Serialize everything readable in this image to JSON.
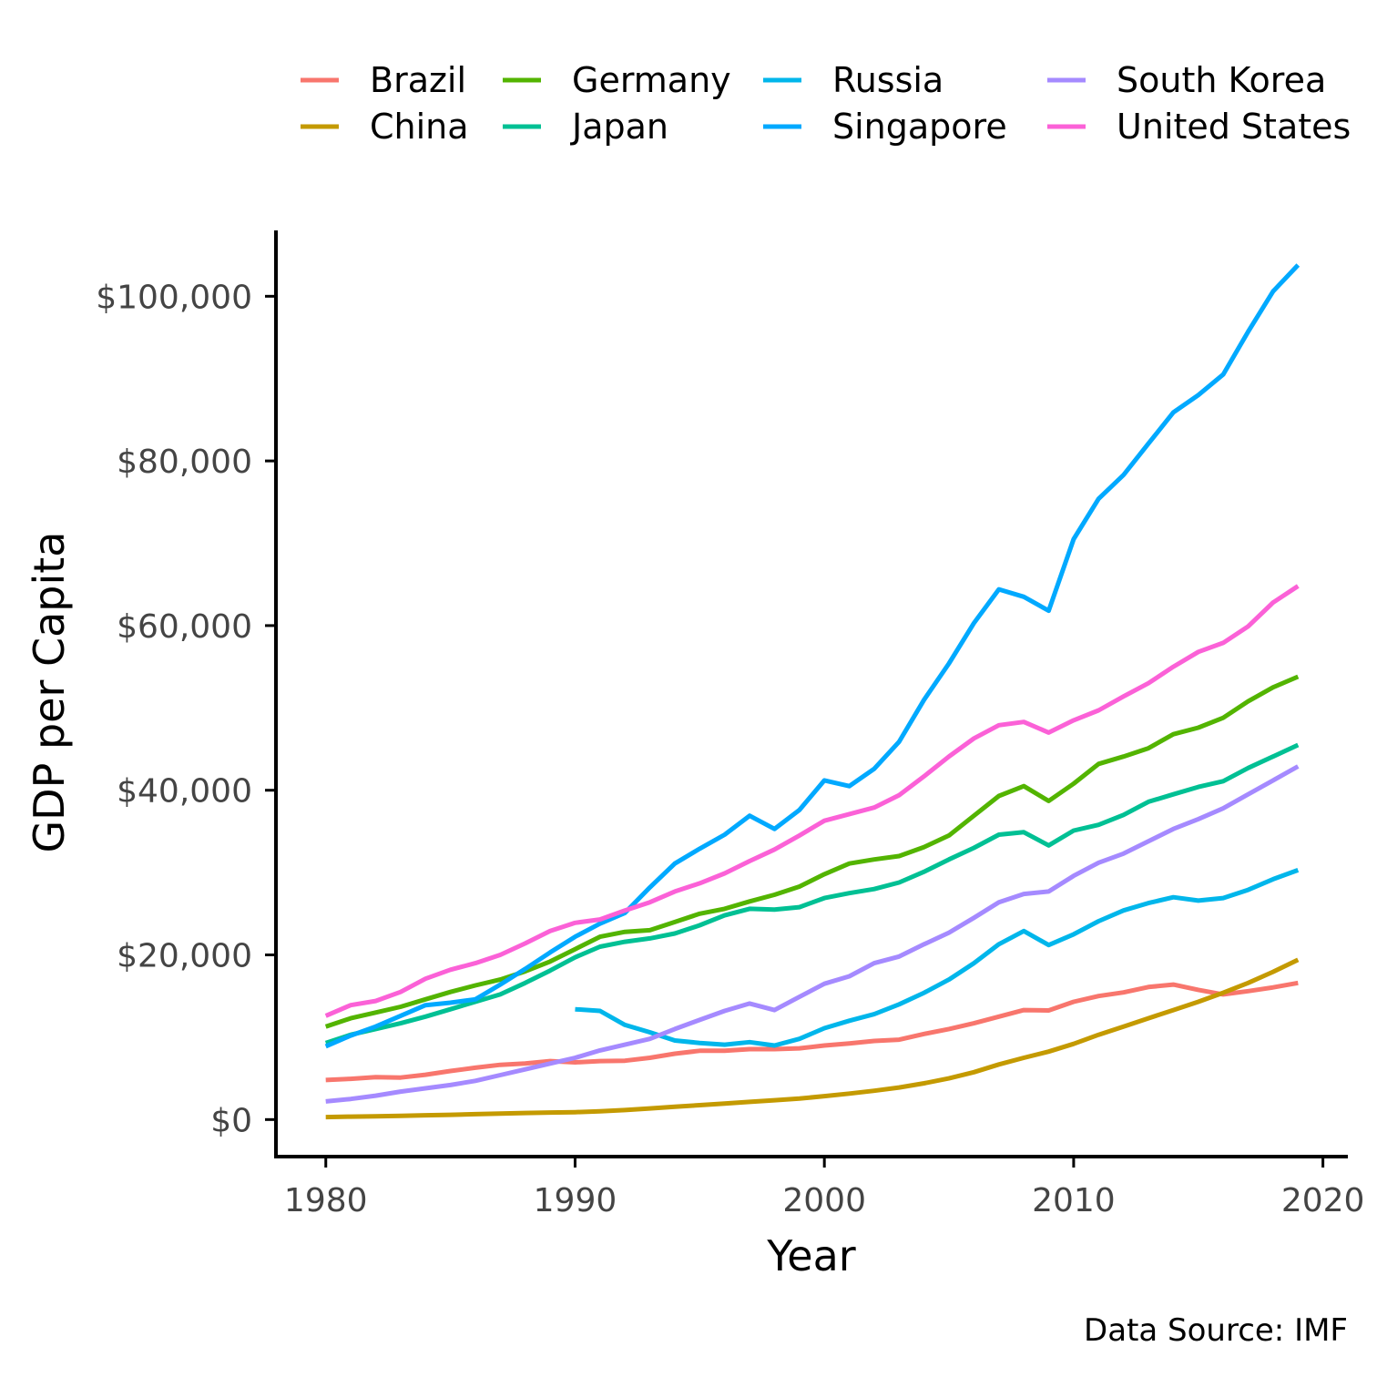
{
  "chart_data": {
    "type": "line",
    "title": "",
    "xlabel": "Year",
    "ylabel": "GDP per Capita",
    "caption": "Data Source: IMF",
    "xlim": [
      1978,
      2021
    ],
    "ylim": [
      -4500,
      108000
    ],
    "x_ticks": [
      1980,
      1990,
      2000,
      2010,
      2020
    ],
    "y_ticks": [
      {
        "value": 0,
        "label": "$0"
      },
      {
        "value": 20000,
        "label": "$20,000"
      },
      {
        "value": 40000,
        "label": "$40,000"
      },
      {
        "value": 60000,
        "label": "$60,000"
      },
      {
        "value": 80000,
        "label": "$80,000"
      },
      {
        "value": 100000,
        "label": "$100,000"
      }
    ],
    "grid": false,
    "legend_position": "top",
    "series": [
      {
        "name": "Brazil",
        "color": "#F8766D",
        "start_year": 1980,
        "values": [
          4800,
          4950,
          5150,
          5100,
          5450,
          5900,
          6300,
          6650,
          6800,
          7100,
          6950,
          7100,
          7150,
          7500,
          8000,
          8350,
          8350,
          8550,
          8550,
          8650,
          9000,
          9250,
          9550,
          9700,
          10400,
          11000,
          11700,
          12500,
          13300,
          13250,
          14300,
          15000,
          15450,
          16100,
          16400,
          15750,
          15200,
          15600,
          16050,
          16600
        ]
      },
      {
        "name": "China",
        "color": "#C49A00",
        "start_year": 1980,
        "values": [
          300,
          360,
          400,
          450,
          520,
          580,
          650,
          720,
          800,
          850,
          900,
          1000,
          1150,
          1350,
          1550,
          1750,
          1950,
          2150,
          2350,
          2550,
          2850,
          3150,
          3500,
          3900,
          4400,
          5000,
          5750,
          6700,
          7500,
          8250,
          9200,
          10300,
          11300,
          12300,
          13300,
          14300,
          15400,
          16600,
          17950,
          19400
        ]
      },
      {
        "name": "Germany",
        "color": "#53B400",
        "start_year": 1980,
        "values": [
          11300,
          12300,
          13000,
          13700,
          14600,
          15500,
          16300,
          17000,
          18000,
          19200,
          20700,
          22200,
          22800,
          23000,
          24000,
          25000,
          25600,
          26500,
          27300,
          28300,
          29800,
          31100,
          31600,
          32000,
          33100,
          34500,
          36900,
          39300,
          40500,
          38700,
          40800,
          43200,
          44100,
          45100,
          46800,
          47600,
          48800,
          50800,
          52500,
          53800
        ]
      },
      {
        "name": "Japan",
        "color": "#00C094",
        "start_year": 1980,
        "values": [
          9300,
          10300,
          11000,
          11700,
          12500,
          13400,
          14300,
          15200,
          16600,
          18100,
          19700,
          21000,
          21600,
          22000,
          22600,
          23600,
          24800,
          25600,
          25500,
          25800,
          26900,
          27500,
          28000,
          28800,
          30100,
          31600,
          33000,
          34600,
          34900,
          33300,
          35100,
          35800,
          37000,
          38600,
          39500,
          40400,
          41100,
          42700,
          44100,
          45500
        ]
      },
      {
        "name": "Russia",
        "color": "#00B6EB",
        "start_year": 1990,
        "values": [
          13400,
          13200,
          11500,
          10600,
          9600,
          9300,
          9100,
          9400,
          9000,
          9800,
          11100,
          12000,
          12800,
          14000,
          15400,
          17000,
          19000,
          21300,
          22900,
          21200,
          22500,
          24100,
          25400,
          26300,
          27000,
          26600,
          26900,
          27900,
          29200,
          30300
        ]
      },
      {
        "name": "Singapore",
        "color": "#00A9FF",
        "start_year": 1980,
        "values": [
          8900,
          10200,
          11300,
          12600,
          13900,
          14200,
          14600,
          16400,
          18300,
          20300,
          22200,
          23800,
          25100,
          28200,
          31100,
          32900,
          34600,
          36900,
          35300,
          37600,
          41200,
          40500,
          42600,
          45900,
          51000,
          55400,
          60300,
          64400,
          63500,
          61800,
          70500,
          75400,
          78300,
          82100,
          85900,
          88000,
          90500,
          95700,
          100600,
          103800
        ]
      },
      {
        "name": "South Korea",
        "color": "#A58AFF",
        "start_year": 1980,
        "values": [
          2200,
          2500,
          2900,
          3400,
          3800,
          4200,
          4700,
          5400,
          6100,
          6800,
          7500,
          8400,
          9100,
          9800,
          11000,
          12100,
          13200,
          14100,
          13300,
          14900,
          16500,
          17400,
          19000,
          19800,
          21300,
          22700,
          24500,
          26400,
          27400,
          27700,
          29600,
          31200,
          32300,
          33800,
          35300,
          36500,
          37800,
          39500,
          41200,
          42900
        ]
      },
      {
        "name": "United States",
        "color": "#FB61D7",
        "start_year": 1980,
        "values": [
          12600,
          13900,
          14400,
          15500,
          17100,
          18200,
          19000,
          20000,
          21400,
          22900,
          23900,
          24300,
          25400,
          26400,
          27700,
          28700,
          29900,
          31400,
          32800,
          34500,
          36300,
          37100,
          37900,
          39400,
          41700,
          44100,
          46300,
          47900,
          48300,
          47000,
          48500,
          49700,
          51400,
          53000,
          55000,
          56800,
          57900,
          59900,
          62800,
          64800
        ]
      }
    ]
  }
}
